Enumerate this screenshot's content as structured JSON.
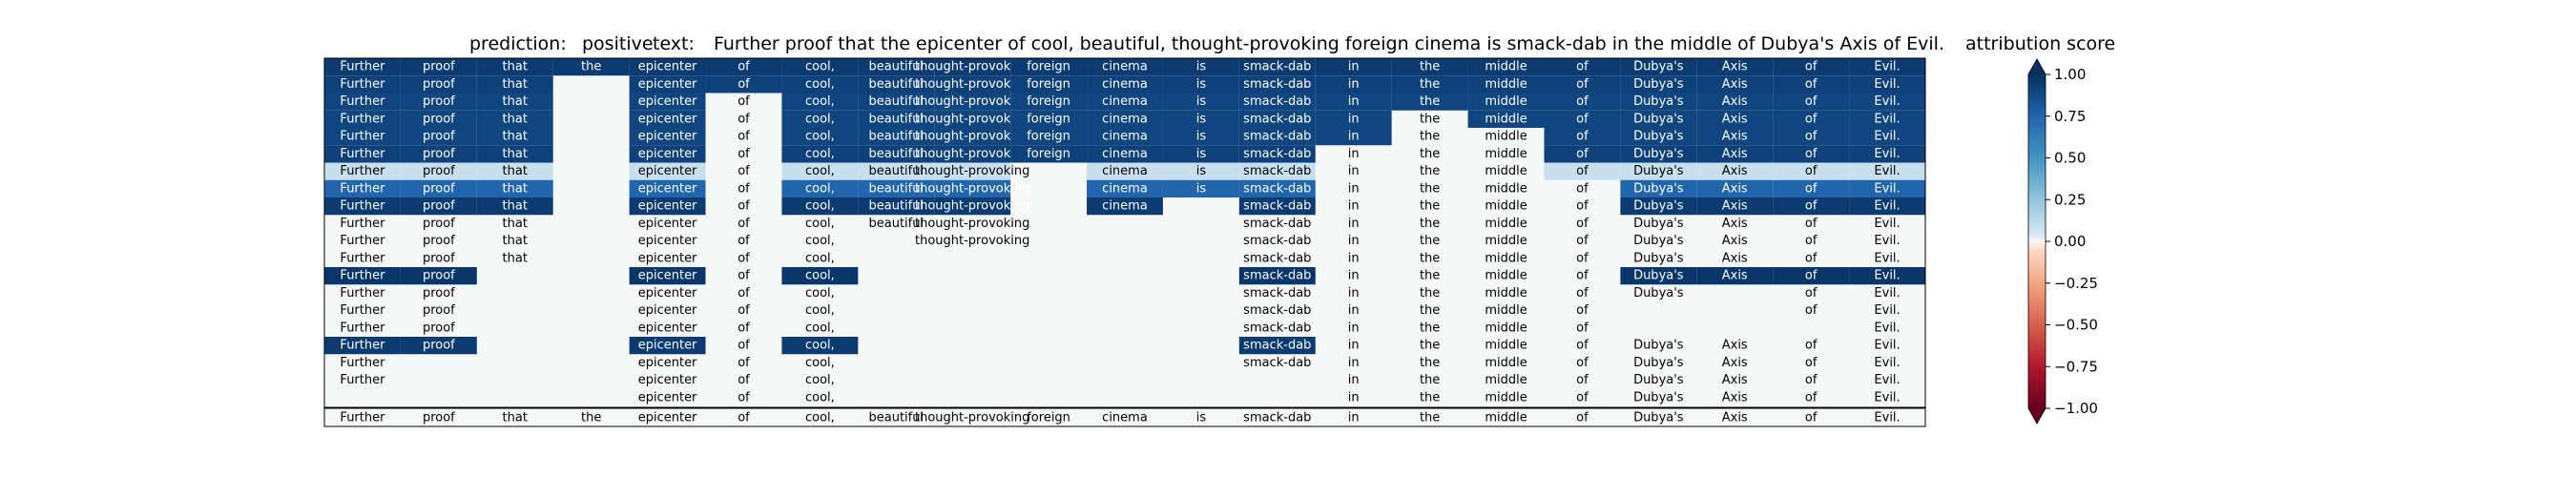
{
  "chart_data": {
    "type": "heatmap",
    "header": {
      "prediction_label": "prediction:",
      "prediction_value": "positive",
      "text_label": "text:",
      "text_value": "Further proof that the epicenter of cool, beautiful, thought-provoking foreign cinema is smack-dab in the middle of Dubya's Axis of Evil."
    },
    "tokens": [
      "Further",
      "proof",
      "that",
      "the",
      "epicenter",
      "of",
      "cool,",
      "beautiful,",
      "thought-provoking",
      "foreign",
      "cinema",
      "is",
      "smack-dab",
      "in",
      "the",
      "middle",
      "of",
      "Dubya's",
      "Axis",
      "of",
      "Evil."
    ],
    "token_labels": [
      "Further",
      "proof",
      "that",
      "the",
      "epicenter",
      "of",
      "cool,",
      "beautiful",
      "thought-provoking",
      "foreign",
      "cinema",
      "is",
      "smack-dab",
      "in",
      "the",
      "middle",
      "of",
      "Dubya's",
      "Axis",
      "of",
      "Evil."
    ],
    "rows": [
      [
        0.95,
        0.95,
        0.95,
        0.95,
        0.95,
        0.95,
        0.95,
        0.95,
        0.95,
        0.95,
        0.95,
        0.95,
        0.95,
        0.95,
        0.95,
        0.95,
        0.95,
        0.95,
        0.95,
        0.95,
        0.95
      ],
      [
        0.92,
        0.92,
        0.92,
        null,
        0.92,
        0.92,
        0.92,
        0.92,
        0.92,
        0.92,
        0.92,
        0.92,
        0.92,
        0.92,
        0.92,
        0.92,
        0.92,
        0.92,
        0.92,
        0.92,
        0.92
      ],
      [
        0.9,
        0.9,
        0.9,
        null,
        0.9,
        0,
        0.9,
        0.9,
        0.9,
        0.9,
        0.9,
        0.9,
        0.9,
        0.9,
        0.9,
        0.9,
        0.9,
        0.9,
        0.9,
        0.9,
        0.9
      ],
      [
        0.9,
        0.9,
        0.9,
        null,
        0.9,
        0,
        0.9,
        0.9,
        0.9,
        0.9,
        0.9,
        0.9,
        0.9,
        0.9,
        0,
        0.9,
        0.9,
        0.9,
        0.9,
        0.9,
        0.9
      ],
      [
        0.9,
        0.9,
        0.9,
        null,
        0.9,
        0,
        0.9,
        0.9,
        0.9,
        0.9,
        0.9,
        0.9,
        0.9,
        0.9,
        0,
        0,
        0.9,
        0.9,
        0.9,
        0.9,
        0.9
      ],
      [
        0.92,
        0.92,
        0.92,
        null,
        0.92,
        0,
        0.92,
        0.92,
        0.92,
        0.92,
        0.92,
        0.92,
        0.92,
        0,
        0,
        0,
        0.92,
        0.92,
        0.92,
        0.92,
        0.92
      ],
      [
        0.08,
        0.08,
        0.08,
        null,
        0.08,
        0,
        0.08,
        0.08,
        0.08,
        null,
        0.08,
        0.08,
        0.08,
        0,
        0,
        0,
        0.08,
        0.08,
        0.08,
        0.08,
        0.08
      ],
      [
        0.75,
        0.75,
        0.75,
        null,
        0.75,
        0,
        0.75,
        0.75,
        0.75,
        null,
        0.75,
        0.75,
        0.75,
        0,
        0,
        0,
        0,
        0.75,
        0.75,
        0.75,
        0.75
      ],
      [
        0.95,
        0.95,
        0.95,
        null,
        0.95,
        0,
        0.95,
        0.95,
        0.95,
        null,
        0.95,
        null,
        0.95,
        0,
        0,
        0,
        0,
        0.95,
        0.95,
        0.95,
        0.95
      ],
      [
        0,
        0,
        0,
        null,
        0,
        0,
        0,
        0,
        0,
        null,
        null,
        null,
        0,
        0,
        0,
        0,
        0,
        0,
        0,
        0,
        0
      ],
      [
        0,
        0,
        0,
        null,
        0,
        0,
        0,
        null,
        0,
        null,
        null,
        null,
        0,
        0,
        0,
        0,
        0,
        0,
        0,
        0,
        0
      ],
      [
        0,
        0,
        0,
        null,
        0,
        0,
        0,
        null,
        null,
        null,
        null,
        null,
        0,
        0,
        0,
        0,
        0,
        0,
        0,
        0,
        0
      ],
      [
        0.97,
        0.97,
        null,
        null,
        0.97,
        0,
        0.97,
        null,
        null,
        null,
        null,
        null,
        0.97,
        0,
        0,
        0,
        0,
        0.97,
        0.97,
        0.97,
        0.97
      ],
      [
        0,
        0,
        null,
        null,
        0,
        0,
        0,
        null,
        null,
        null,
        null,
        null,
        0,
        0,
        0,
        0,
        0,
        0,
        null,
        0,
        0
      ],
      [
        0,
        0,
        null,
        null,
        0,
        0,
        0,
        null,
        null,
        null,
        null,
        null,
        0,
        0,
        0,
        0,
        0,
        null,
        null,
        0,
        0
      ],
      [
        0,
        0,
        null,
        null,
        0,
        0,
        0,
        null,
        null,
        null,
        null,
        null,
        0,
        0,
        0,
        0,
        0,
        null,
        null,
        null,
        0
      ],
      [
        0.95,
        0.95,
        null,
        null,
        0.95,
        0,
        0.95,
        null,
        null,
        null,
        null,
        null,
        0.95,
        0,
        0,
        0,
        0,
        0,
        0,
        0,
        0
      ],
      [
        0,
        null,
        null,
        null,
        0,
        0,
        0,
        null,
        null,
        null,
        null,
        null,
        0,
        0,
        0,
        0,
        0,
        0,
        0,
        0,
        0
      ],
      [
        0,
        null,
        null,
        null,
        0,
        0,
        0,
        null,
        null,
        null,
        null,
        null,
        null,
        0,
        0,
        0,
        0,
        0,
        0,
        0,
        0
      ],
      [
        null,
        null,
        null,
        null,
        0,
        0,
        0,
        null,
        null,
        null,
        null,
        null,
        null,
        0,
        0,
        0,
        0,
        0,
        0,
        0,
        0
      ]
    ],
    "colorbar": {
      "label": "attribution score",
      "vmin": -1.0,
      "vmax": 1.0,
      "ticks": [
        1.0,
        0.75,
        0.5,
        0.25,
        0.0,
        -0.25,
        -0.5,
        -0.75,
        -1.0
      ],
      "tick_labels": [
        "1.00",
        "0.75",
        "0.50",
        "0.25",
        "0.00",
        "−0.25",
        "−0.50",
        "−0.75",
        "−1.00"
      ],
      "colormap": "RdBu"
    }
  }
}
